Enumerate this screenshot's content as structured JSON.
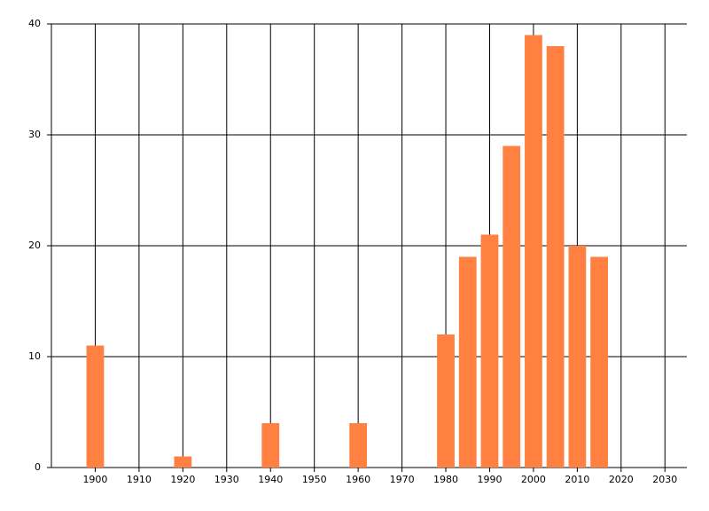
{
  "chart_data": {
    "type": "bar",
    "x": [
      1900,
      1920,
      1940,
      1960,
      1980,
      1985,
      1990,
      1995,
      2000,
      2005,
      2010,
      2015
    ],
    "values": [
      11,
      1,
      4,
      4,
      12,
      19,
      21,
      29,
      39,
      38,
      20,
      19
    ],
    "color": "#ff8040",
    "xlim": [
      1890,
      2035
    ],
    "xticks": [
      1900,
      1910,
      1920,
      1930,
      1940,
      1950,
      1960,
      1970,
      1980,
      1990,
      2000,
      2010,
      2020,
      2030
    ],
    "ylim": [
      0,
      40
    ],
    "yticks": [
      0,
      10,
      20,
      30,
      40
    ],
    "grid": true
  }
}
